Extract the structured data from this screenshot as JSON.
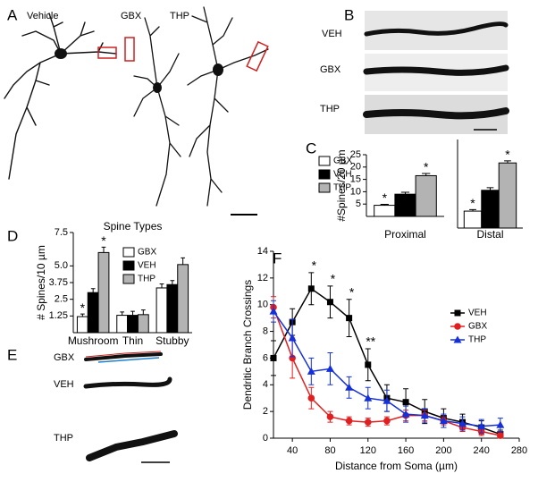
{
  "panels": {
    "A": "A",
    "B": "B",
    "C": "C",
    "D": "D",
    "E": "E",
    "F": "F"
  },
  "panel_a": {
    "labels": [
      "Vehicle",
      "GBX",
      "THP"
    ]
  },
  "panel_b": {
    "labels": [
      "VEH",
      "GBX",
      "THP"
    ]
  },
  "panel_e": {
    "labels": [
      "GBX",
      "VEH",
      "THP"
    ]
  },
  "chart_data": [
    {
      "type": "bar",
      "y_label": "#Spines/20 µm",
      "categories": [
        "Proximal"
      ],
      "ylim": [
        0,
        25
      ],
      "yticks": [
        5,
        10,
        15,
        20,
        25
      ],
      "legend": "left",
      "series": [
        {
          "name": "GBX",
          "color": "#ffffff",
          "values": [
            4.5
          ],
          "errors": [
            0.4
          ],
          "annotations": [
            "*"
          ]
        },
        {
          "name": "VEH",
          "color": "#000000",
          "values": [
            9
          ],
          "errors": [
            0.8
          ],
          "annotations": [
            null
          ]
        },
        {
          "name": "THP",
          "color": "#b3b3b3",
          "values": [
            16.5
          ],
          "errors": [
            0.9
          ],
          "annotations": [
            "*"
          ]
        }
      ]
    },
    {
      "type": "bar",
      "categories": [
        "Distal"
      ],
      "ylim": [
        0,
        34
      ],
      "series": [
        {
          "color": "#ffffff",
          "values": [
            6.5
          ],
          "errors": [
            0.6
          ],
          "annotations": [
            "*"
          ]
        },
        {
          "color": "#000000",
          "values": [
            14.5
          ],
          "errors": [
            1
          ],
          "annotations": [
            null
          ]
        },
        {
          "color": "#b3b3b3",
          "values": [
            25
          ],
          "errors": [
            0.8
          ],
          "annotations": [
            "*"
          ]
        }
      ]
    },
    {
      "type": "bar",
      "title": "Spine Types",
      "y_label": "# Spines/10 µm",
      "categories": [
        "Mushroom",
        "Thin",
        "Stubby"
      ],
      "legend": "upper right",
      "ylim": [
        0,
        7.5
      ],
      "yticks": [
        1.25,
        2.5,
        3.75,
        {
          "value": 5,
          "label": "5.0"
        },
        7.5
      ],
      "series": [
        {
          "name": "GBX",
          "color": "#ffffff",
          "values": [
            1.2,
            1.3,
            3.35
          ],
          "errors": [
            0.2,
            0.25,
            0.3
          ],
          "annotations": [
            "*",
            null,
            null
          ]
        },
        {
          "name": "VEH",
          "color": "#000000",
          "values": [
            3.0,
            1.3,
            3.6
          ],
          "errors": [
            0.3,
            0.3,
            0.3
          ],
          "annotations": [
            null,
            null,
            null
          ]
        },
        {
          "name": "THP",
          "color": "#b3b3b3",
          "values": [
            6.0,
            1.35,
            5.1
          ],
          "errors": [
            0.4,
            0.35,
            0.5
          ],
          "annotations": [
            "*",
            null,
            null
          ]
        }
      ]
    },
    {
      "type": "line",
      "x_label": "Distance from Soma (µm)",
      "y_label": "Dendritic Branch Crossings",
      "x": [
        20,
        40,
        60,
        80,
        100,
        120,
        140,
        160,
        180,
        200,
        220,
        240,
        260
      ],
      "xlim": [
        20,
        280
      ],
      "xticks": [
        40,
        80,
        120,
        160,
        200,
        240,
        280
      ],
      "ylim": [
        0,
        14
      ],
      "yticks": [
        0,
        2,
        4,
        6,
        8,
        10,
        12,
        14
      ],
      "legend": "right",
      "series": [
        {
          "name": "VEH",
          "color": "#000000",
          "marker": "square",
          "values": [
            6,
            8.7,
            11.2,
            10.2,
            9.0,
            5.5,
            3.0,
            2.7,
            2.0,
            1.5,
            1.2,
            0.8,
            0.3
          ],
          "errors": [
            1.3,
            1.0,
            1.2,
            1.2,
            1.4,
            1.2,
            1.0,
            1.0,
            0.9,
            0.7,
            0.6,
            0.5,
            0.3
          ],
          "annotations": [
            null,
            null,
            "*",
            "*",
            "*",
            "**",
            null,
            null,
            null,
            null,
            null,
            null,
            null
          ]
        },
        {
          "name": "GBX",
          "color": "#e02020",
          "marker": "circle",
          "values": [
            9.8,
            6.0,
            3.0,
            1.6,
            1.3,
            1.2,
            1.3,
            1.7,
            1.7,
            1.3,
            0.8,
            0.5,
            0.2
          ],
          "errors": [
            0.8,
            1.5,
            0.8,
            0.4,
            0.3,
            0.3,
            0.3,
            0.4,
            0.4,
            0.3,
            0.3,
            0.3,
            0.2
          ],
          "annotations": [
            null,
            null,
            null,
            null,
            null,
            null,
            null,
            null,
            null,
            null,
            null,
            null,
            null
          ]
        },
        {
          "name": "THP",
          "color": "#1530d8",
          "marker": "triangle",
          "values": [
            9.5,
            7.5,
            5.0,
            5.2,
            3.8,
            3.0,
            2.8,
            1.8,
            1.7,
            1.3,
            1.1,
            0.9,
            1.0
          ],
          "errors": [
            0.8,
            1.4,
            1.0,
            1.2,
            0.8,
            0.8,
            0.8,
            0.6,
            0.5,
            0.5,
            0.5,
            0.5,
            0.5
          ],
          "annotations": [
            null,
            null,
            null,
            null,
            null,
            null,
            null,
            null,
            null,
            null,
            null,
            null,
            null
          ]
        }
      ]
    }
  ]
}
